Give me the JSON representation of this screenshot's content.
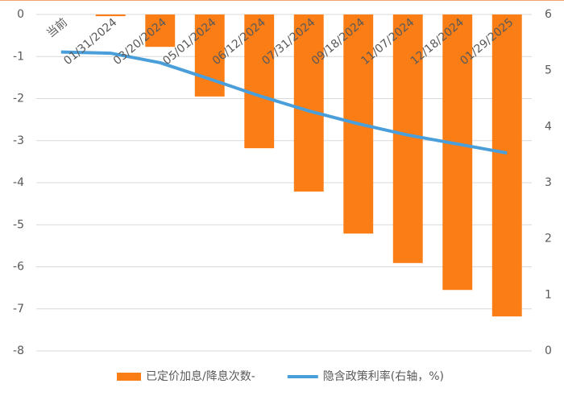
{
  "chart_data": {
    "type": "bar-line",
    "categories": [
      "当前",
      "01/31/2024",
      "03/20/2024",
      "05/01/2024",
      "06/12/2024",
      "07/31/2024",
      "09/18/2024",
      "11/07/2024",
      "12/18/2024",
      "01/29/2025"
    ],
    "series": [
      {
        "name": "已定价加息/降息次数-",
        "color": "#fa7d15",
        "type": "bar",
        "values": [
          0,
          -0.04,
          -0.77,
          -1.95,
          -3.18,
          -4.21,
          -5.21,
          -5.91,
          -6.55,
          -7.18
        ]
      },
      {
        "name": "隐含政策利率(右轴，%)",
        "color": "#4a9fdb",
        "type": "line",
        "axis": "y2",
        "values": [
          5.33,
          5.31,
          5.14,
          4.85,
          4.55,
          4.28,
          4.05,
          3.85,
          3.69,
          3.53
        ]
      }
    ],
    "ylim": [
      -8,
      0
    ],
    "yticks": [
      0,
      -1,
      -2,
      -3,
      -4,
      -5,
      -6,
      -7,
      -8
    ],
    "y2lim": [
      0,
      6
    ],
    "y2ticks": [
      0,
      1,
      2,
      3,
      4,
      5,
      6
    ],
    "grid": true,
    "legend": "bottom"
  }
}
